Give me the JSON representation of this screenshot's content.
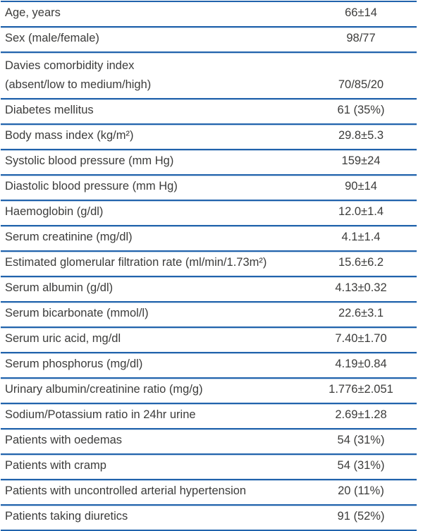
{
  "colors": {
    "rule_blue": "#2163ac",
    "text": "#3c3c3b",
    "background": "#ffffff"
  },
  "table": {
    "rows": [
      {
        "label": "Age, years",
        "value": "66±14",
        "tall": false
      },
      {
        "label": "Sex (male/female)",
        "value": "98/77",
        "tall": false
      },
      {
        "label": "Davies comorbidity index\n(absent/low to medium/high)",
        "value": "70/85/20",
        "tall": true
      },
      {
        "label": "Diabetes mellitus",
        "value": "61 (35%)",
        "tall": false
      },
      {
        "label": "Body mass index (kg/m²)",
        "value": "29.8±5.3",
        "tall": false
      },
      {
        "label": "Systolic blood pressure (mm Hg)",
        "value": "159±24",
        "tall": false
      },
      {
        "label": "Diastolic blood pressure (mm Hg)",
        "value": "90±14",
        "tall": false
      },
      {
        "label": "Haemoglobin (g/dl)",
        "value": "12.0±1.4",
        "tall": false
      },
      {
        "label": "Serum creatinine (mg/dl)",
        "value": "4.1±1.4",
        "tall": false
      },
      {
        "label": "Estimated glomerular filtration rate (ml/min/1.73m²)",
        "value": "15.6±6.2",
        "tall": false
      },
      {
        "label": "Serum albumin (g/dl)",
        "value": "4.13±0.32",
        "tall": false
      },
      {
        "label": "Serum bicarbonate (mmol/l)",
        "value": "22.6±3.1",
        "tall": false
      },
      {
        "label": "Serum uric acid, mg/dl",
        "value": "7.40±1.70",
        "tall": false
      },
      {
        "label": "Serum phosphorus (mg/dl)",
        "value": "4.19±0.84",
        "tall": false
      },
      {
        "label": "Urinary albumin/creatinine ratio (mg/g)",
        "value": "1.776±2.051",
        "tall": false
      },
      {
        "label": "Sodium/Potassium ratio in 24hr urine",
        "value": "2.69±1.28",
        "tall": false
      },
      {
        "label": "Patients with oedemas",
        "value": "54 (31%)",
        "tall": false
      },
      {
        "label": "Patients with cramp",
        "value": "54 (31%)",
        "tall": false
      },
      {
        "label": "Patients with uncontrolled arterial hypertension",
        "value": "20 (11%)",
        "tall": false
      },
      {
        "label": "Patients taking diuretics",
        "value": "91 (52%)",
        "tall": false
      }
    ]
  }
}
